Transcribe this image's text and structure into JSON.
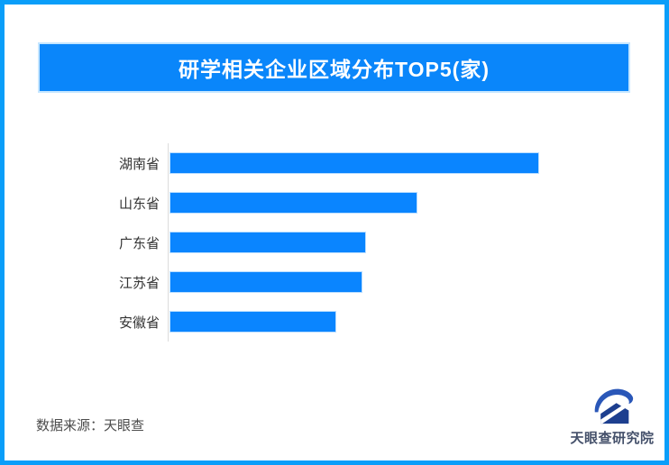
{
  "page": {
    "frame_color": "#0a9ef9",
    "background": "#ffffff"
  },
  "header": {
    "title": "研学相关企业区域分布TOP5(家)",
    "background": "#0a86fa",
    "text_color": "#ffffff"
  },
  "chart_data": {
    "type": "bar",
    "orientation": "horizontal",
    "title": "研学相关企业区域分布TOP5(家)",
    "categories": [
      "湖南省",
      "山东省",
      "广东省",
      "江苏省",
      "安徽省"
    ],
    "values": [
      100,
      67,
      53,
      52,
      45
    ],
    "value_note": "bars carry no numeric labels; values are relative bar lengths with longest bar = 100",
    "axis_max": 116,
    "bar_color": "#0a85ff",
    "xlabel": "",
    "ylabel": "",
    "grid": false,
    "legend": false,
    "axis_line_color": "#dcdcdc",
    "label_color": "#333333"
  },
  "footer": {
    "source_label": "数据来源：天眼查",
    "logo": {
      "icon": "tianyancha-eye-logo",
      "text": "天眼查研究院",
      "color_primary": "#2a57b8",
      "color_dark": "#1d3f8f",
      "text_color": "#44506a"
    }
  }
}
